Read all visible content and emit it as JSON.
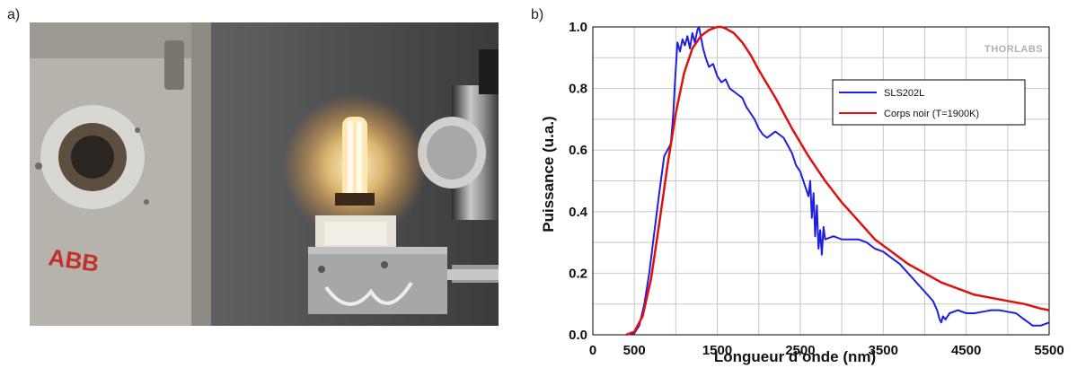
{
  "panels": {
    "a_label": "a)",
    "b_label": "b)"
  },
  "photo": {
    "description_icon": "lamp-photo",
    "brand_text": "ABB"
  },
  "logo_text": "THORLABS",
  "chart_data": {
    "type": "line",
    "title": "",
    "xlabel": "Longueur d’onde (nm)",
    "ylabel": "Puissance (u.a.)",
    "xlim": [
      0,
      5500
    ],
    "ylim": [
      0,
      1.0
    ],
    "xticks": [
      0,
      500,
      1500,
      2500,
      3500,
      4500,
      5500
    ],
    "yticks": [
      0.0,
      0.2,
      0.4,
      0.6,
      0.8,
      1.0
    ],
    "grid": true,
    "legend_position": "top-right",
    "series": [
      {
        "name": "SLS202L",
        "color": "#1f1fe0",
        "x": [
          400,
          500,
          560,
          620,
          680,
          740,
          800,
          860,
          900,
          940,
          970,
          990,
          1020,
          1050,
          1080,
          1110,
          1140,
          1170,
          1200,
          1230,
          1260,
          1280,
          1300,
          1330,
          1360,
          1400,
          1450,
          1500,
          1550,
          1600,
          1650,
          1700,
          1750,
          1800,
          1850,
          1900,
          1950,
          2000,
          2050,
          2100,
          2200,
          2300,
          2400,
          2450,
          2500,
          2550,
          2600,
          2620,
          2640,
          2660,
          2680,
          2700,
          2720,
          2740,
          2760,
          2780,
          2800,
          2900,
          3000,
          3100,
          3200,
          3300,
          3400,
          3500,
          3600,
          3700,
          3800,
          3900,
          4000,
          4100,
          4150,
          4180,
          4200,
          4220,
          4250,
          4300,
          4400,
          4500,
          4600,
          4700,
          4800,
          4900,
          5000,
          5100,
          5200,
          5300,
          5400,
          5500
        ],
        "y": [
          0.0,
          0.005,
          0.03,
          0.1,
          0.2,
          0.33,
          0.46,
          0.58,
          0.6,
          0.62,
          0.72,
          0.82,
          0.95,
          0.92,
          0.96,
          0.94,
          0.97,
          0.93,
          0.98,
          0.95,
          0.99,
          1.0,
          0.97,
          0.93,
          0.9,
          0.87,
          0.88,
          0.84,
          0.82,
          0.83,
          0.8,
          0.79,
          0.78,
          0.77,
          0.74,
          0.72,
          0.7,
          0.67,
          0.65,
          0.64,
          0.66,
          0.64,
          0.59,
          0.55,
          0.53,
          0.49,
          0.45,
          0.5,
          0.38,
          0.46,
          0.32,
          0.42,
          0.28,
          0.34,
          0.26,
          0.35,
          0.31,
          0.32,
          0.31,
          0.31,
          0.31,
          0.3,
          0.28,
          0.27,
          0.25,
          0.23,
          0.2,
          0.17,
          0.14,
          0.11,
          0.08,
          0.05,
          0.04,
          0.06,
          0.05,
          0.07,
          0.08,
          0.07,
          0.07,
          0.075,
          0.08,
          0.08,
          0.075,
          0.07,
          0.05,
          0.03,
          0.03,
          0.04
        ]
      },
      {
        "name": "Corps noir (T=1900K)",
        "color": "#e01010",
        "x": [
          400,
          500,
          600,
          700,
          800,
          900,
          1000,
          1100,
          1200,
          1300,
          1400,
          1500,
          1550,
          1600,
          1700,
          1800,
          1900,
          2000,
          2200,
          2400,
          2600,
          2800,
          3000,
          3200,
          3400,
          3600,
          3800,
          4000,
          4200,
          4400,
          4600,
          4800,
          5000,
          5200,
          5400,
          5500
        ],
        "y": [
          0.0,
          0.01,
          0.06,
          0.18,
          0.36,
          0.55,
          0.72,
          0.85,
          0.93,
          0.97,
          0.99,
          1.0,
          1.0,
          0.995,
          0.98,
          0.95,
          0.91,
          0.86,
          0.77,
          0.67,
          0.58,
          0.5,
          0.43,
          0.37,
          0.31,
          0.27,
          0.23,
          0.2,
          0.17,
          0.15,
          0.13,
          0.12,
          0.11,
          0.1,
          0.085,
          0.08
        ]
      }
    ]
  }
}
